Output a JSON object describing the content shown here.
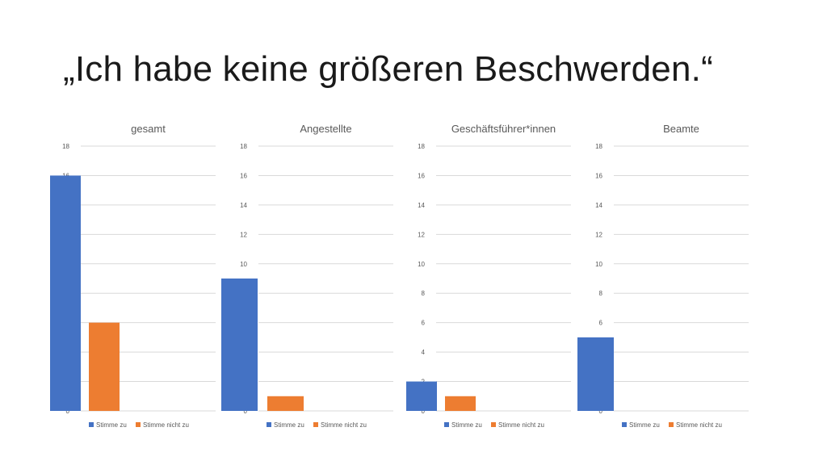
{
  "slide": {
    "title": "„Ich habe keine größeren Beschwerden.“"
  },
  "colors": {
    "stimme_zu": "#4472C4",
    "stimme_nicht_zu": "#ED7D31"
  },
  "chart_data": [
    {
      "type": "bar",
      "title": "gesamt",
      "categories": [
        ""
      ],
      "series": [
        {
          "name": "Stimme zu",
          "values": [
            16
          ]
        },
        {
          "name": "Stimme nicht zu",
          "values": [
            6
          ]
        }
      ],
      "ylim": [
        0,
        18
      ],
      "yticks": [
        0,
        2,
        4,
        6,
        8,
        10,
        12,
        14,
        16,
        18
      ],
      "grid": true,
      "legend": "bottom"
    },
    {
      "type": "bar",
      "title": "Angestellte",
      "categories": [
        ""
      ],
      "series": [
        {
          "name": "Stimme zu",
          "values": [
            9
          ]
        },
        {
          "name": "Stimme nicht zu",
          "values": [
            1
          ]
        }
      ],
      "ylim": [
        0,
        18
      ],
      "yticks": [
        0,
        2,
        4,
        6,
        8,
        10,
        12,
        14,
        16,
        18
      ],
      "grid": true,
      "legend": "bottom"
    },
    {
      "type": "bar",
      "title": "Geschäftsführer*innen",
      "categories": [
        ""
      ],
      "series": [
        {
          "name": "Stimme zu",
          "values": [
            2
          ]
        },
        {
          "name": "Stimme nicht zu",
          "values": [
            1
          ]
        }
      ],
      "ylim": [
        0,
        18
      ],
      "yticks": [
        0,
        2,
        4,
        6,
        8,
        10,
        12,
        14,
        16,
        18
      ],
      "grid": true,
      "legend": "bottom"
    },
    {
      "type": "bar",
      "title": "Beamte",
      "categories": [
        ""
      ],
      "series": [
        {
          "name": "Stimme zu",
          "values": [
            5
          ]
        },
        {
          "name": "Stimme nicht zu",
          "values": [
            0
          ]
        }
      ],
      "ylim": [
        0,
        18
      ],
      "yticks": [
        0,
        2,
        4,
        6,
        8,
        10,
        12,
        14,
        16,
        18
      ],
      "grid": true,
      "legend": "bottom"
    }
  ]
}
